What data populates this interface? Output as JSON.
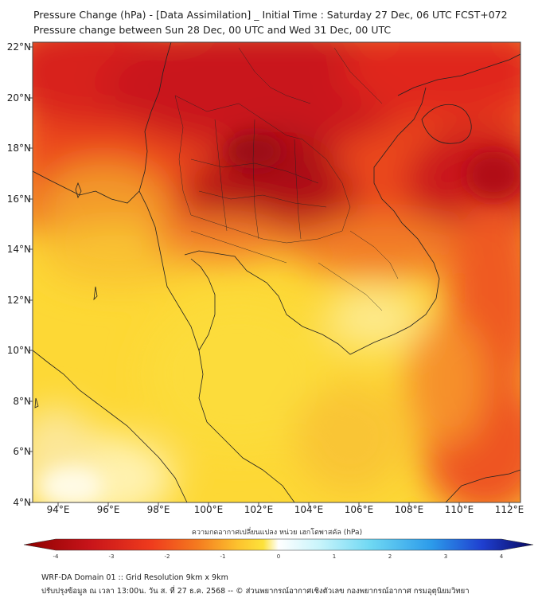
{
  "title": {
    "line1": "Pressure Change (hPa) - [Data Assimilation] _ Initial Time : Saturday 27 Dec, 06 UTC FCST+072",
    "line2": "Pressure change between Sun 28 Dec, 00 UTC and Wed 31 Dec, 00 UTC"
  },
  "axes": {
    "lat_ticks": [
      "22°N",
      "20°N",
      "18°N",
      "16°N",
      "14°N",
      "12°N",
      "10°N",
      "8°N",
      "6°N",
      "4°N"
    ],
    "lon_ticks": [
      "94°E",
      "96°E",
      "98°E",
      "100°E",
      "102°E",
      "104°E",
      "106°E",
      "108°E",
      "110°E",
      "112°E"
    ],
    "lat_range": [
      4,
      22.3
    ],
    "lon_range": [
      93,
      112.5
    ]
  },
  "colorbar": {
    "label": "ความกดอากาศเปลี่ยนแปลง หน่วย เฮกโตพาสคัล (hPa)",
    "ticks": [
      "-4",
      "-3",
      "-2",
      "-1",
      "0",
      "1",
      "2",
      "3",
      "4"
    ],
    "range": [
      -4,
      4
    ],
    "colors": {
      "darkred": "#8b0000",
      "red": "#e41a1c",
      "orange": "#f47a1f",
      "yellow": "#fde23a",
      "white": "#ffffff",
      "lightblue": "#8ee8f8",
      "blue": "#1f6fd8",
      "navy": "#08085e"
    }
  },
  "footer": {
    "line1": "WRF-DA Domain 01 :: Grid Resolution 9km x 9km",
    "line2": "ปรับปรุงข้อมูล ณ เวลา 13:00น. วัน ส. ที่ 27 ธ.ค. 2568 -- © ส่วนพยากรณ์อากาศเชิงตัวเลข กองพยากรณ์อากาศ กรมอุตุนิยมวิทยา"
  },
  "map_colors": {
    "land_border": "#222222",
    "frame": "#444444"
  }
}
